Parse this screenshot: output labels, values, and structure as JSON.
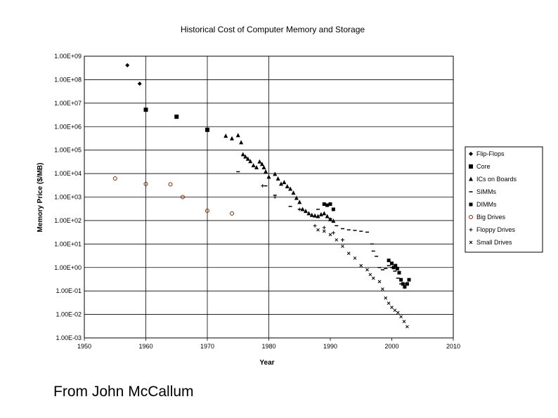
{
  "chart_data": {
    "type": "scatter",
    "title": "Historical Cost of Computer Memory and Storage",
    "xlabel": "Year",
    "ylabel": "Memory Price ($/MB)",
    "xlim": [
      1950,
      2010
    ],
    "ylim": [
      0.001,
      1000000000
    ],
    "yscale": "log",
    "grid": true,
    "legend_position": "right",
    "x_ticks": [
      "1950",
      "1960",
      "1970",
      "1980",
      "1990",
      "2000",
      "2010"
    ],
    "y_ticks": [
      "1.00E-03",
      "1.00E-02",
      "1.00E-01",
      "1.00E+00",
      "1.00E+01",
      "1.00E+02",
      "1.00E+03",
      "1.00E+04",
      "1.00E+05",
      "1.00E+06",
      "1.00E+07",
      "1.00E+08",
      "1.00E+09"
    ],
    "series": [
      {
        "name": "Flip-Flops",
        "marker": "diamond",
        "color": "#000000",
        "points": [
          [
            1957,
            411000000
          ],
          [
            1959,
            67500000
          ]
        ]
      },
      {
        "name": "Core",
        "marker": "square",
        "color": "#000000",
        "points": [
          [
            1960,
            5240000
          ],
          [
            1965,
            2640000
          ],
          [
            1970,
            734000
          ]
        ]
      },
      {
        "name": "ICs on Boards",
        "marker": "triangle",
        "color": "#000000",
        "points": [
          [
            1973,
            399000
          ],
          [
            1974,
            310000
          ],
          [
            1975,
            421000
          ],
          [
            1975.5,
            210000
          ],
          [
            1975.8,
            65000
          ],
          [
            1976.2,
            52000
          ],
          [
            1976.6,
            42000
          ],
          [
            1977,
            33000
          ],
          [
            1977.5,
            22000
          ],
          [
            1978,
            18000
          ],
          [
            1978.5,
            32000
          ],
          [
            1978.9,
            25000
          ],
          [
            1979.2,
            18000
          ],
          [
            1979.5,
            12000
          ],
          [
            1980,
            7200
          ],
          [
            1981,
            9500
          ],
          [
            1981.5,
            6000
          ],
          [
            1982,
            3600
          ],
          [
            1982.5,
            4200
          ],
          [
            1983,
            2800
          ],
          [
            1983.5,
            2200
          ],
          [
            1984,
            1500
          ],
          [
            1984.5,
            900
          ],
          [
            1985,
            600
          ],
          [
            1985.5,
            300
          ],
          [
            1986,
            250
          ],
          [
            1986.5,
            200
          ],
          [
            1987,
            170
          ],
          [
            1987.5,
            160
          ],
          [
            1988,
            150
          ],
          [
            1988.5,
            180
          ],
          [
            1989,
            200
          ],
          [
            1989.5,
            150
          ],
          [
            1990,
            110
          ],
          [
            1990.5,
            95
          ]
        ]
      },
      {
        "name": "SIMMs",
        "marker": "dash",
        "color": "#000000",
        "points": [
          [
            1975,
            12000
          ],
          [
            1979.5,
            3000
          ],
          [
            1981,
            1200
          ],
          [
            1983.5,
            400
          ],
          [
            1985,
            300
          ],
          [
            1988,
            300
          ],
          [
            1990,
            120
          ],
          [
            1991,
            60
          ],
          [
            1992,
            45
          ],
          [
            1993,
            40
          ],
          [
            1994,
            38
          ],
          [
            1995,
            35
          ],
          [
            1996,
            32
          ],
          [
            1996.8,
            10
          ],
          [
            1997,
            5
          ],
          [
            1997.5,
            3
          ],
          [
            1998,
            1
          ],
          [
            1998.5,
            0.8
          ],
          [
            1999,
            0.9
          ],
          [
            1999.5,
            1.2
          ],
          [
            2000,
            1
          ],
          [
            2000.5,
            0.7
          ],
          [
            2001,
            0.35
          ],
          [
            2001.5,
            0.2
          ],
          [
            2002,
            0.2
          ],
          [
            2002.5,
            0.2
          ]
        ]
      },
      {
        "name": "DIMMs",
        "marker": "square-small",
        "color": "#000000",
        "points": [
          [
            1989,
            500
          ],
          [
            1989.5,
            450
          ],
          [
            1990,
            500
          ],
          [
            1990.5,
            300
          ],
          [
            1999.5,
            2
          ],
          [
            2000,
            1.5
          ],
          [
            2000.3,
            1
          ],
          [
            2000.6,
            1.2
          ],
          [
            2000.9,
            0.9
          ],
          [
            2001.2,
            0.6
          ],
          [
            2001.5,
            0.3
          ],
          [
            2001.8,
            0.2
          ],
          [
            2002.1,
            0.15
          ],
          [
            2002.5,
            0.2
          ],
          [
            2002.8,
            0.3
          ]
        ]
      },
      {
        "name": "Big Drives",
        "marker": "circle-open",
        "color": "#8b2500",
        "points": [
          [
            1955,
            6233
          ],
          [
            1960,
            3600
          ],
          [
            1964,
            3500
          ],
          [
            1966,
            1000
          ],
          [
            1970,
            260
          ],
          [
            1974,
            200
          ]
        ]
      },
      {
        "name": "Floppy Drives",
        "marker": "plus",
        "color": "#000000",
        "points": [
          [
            1979,
            3000
          ],
          [
            1981,
            1000
          ],
          [
            1985,
            300
          ],
          [
            1987.5,
            60
          ],
          [
            1989,
            50
          ],
          [
            1990.5,
            30
          ],
          [
            1992,
            15
          ]
        ]
      },
      {
        "name": "Small Drives",
        "marker": "x",
        "color": "#000000",
        "points": [
          [
            1988,
            40
          ],
          [
            1989,
            35
          ],
          [
            1990,
            25
          ],
          [
            1991,
            15
          ],
          [
            1992,
            8
          ],
          [
            1993,
            4
          ],
          [
            1994,
            2.5
          ],
          [
            1995,
            1.2
          ],
          [
            1996,
            0.8
          ],
          [
            1996.5,
            0.5
          ],
          [
            1997,
            0.35
          ],
          [
            1998,
            0.25
          ],
          [
            1998.5,
            0.12
          ],
          [
            1999,
            0.05
          ],
          [
            1999.5,
            0.03
          ],
          [
            2000,
            0.02
          ],
          [
            2000.5,
            0.015
          ],
          [
            2001,
            0.012
          ],
          [
            2001.5,
            0.008
          ],
          [
            2002,
            0.005
          ],
          [
            2002.5,
            0.003
          ]
        ]
      }
    ]
  },
  "footer": {
    "credit": "From John McCallum"
  }
}
